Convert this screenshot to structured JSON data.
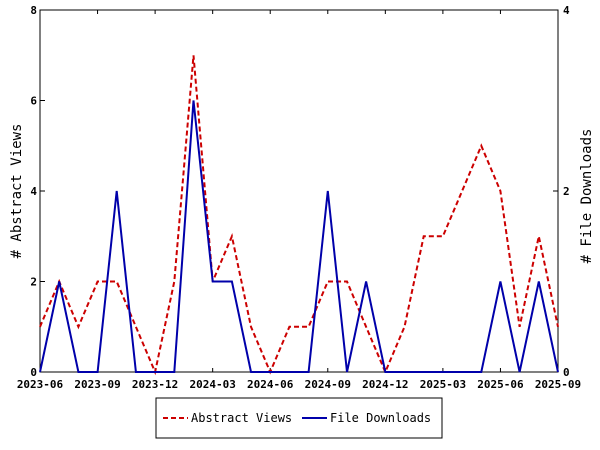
{
  "chart_data": {
    "type": "line",
    "x": [
      "2023-06",
      "2023-07",
      "2023-08",
      "2023-09",
      "2023-10",
      "2023-11",
      "2023-12",
      "2024-01",
      "2024-02",
      "2024-03",
      "2024-04",
      "2024-05",
      "2024-06",
      "2024-07",
      "2024-08",
      "2024-09",
      "2024-10",
      "2024-11",
      "2024-12",
      "2025-01",
      "2025-02",
      "2025-03",
      "2025-04",
      "2025-05",
      "2025-06",
      "2025-07",
      "2025-08",
      "2025-09"
    ],
    "x_tick_labels": [
      "2023-06",
      "2023-09",
      "2023-12",
      "2024-03",
      "2024-06",
      "2024-09",
      "2024-12",
      "2025-03",
      "2025-06",
      "2025-09"
    ],
    "ylabel": "# Abstract Views",
    "y2label": "# File Downloads",
    "ylim": [
      0,
      8
    ],
    "y2lim": [
      0,
      4
    ],
    "y_ticks": [
      0,
      2,
      4,
      6,
      8
    ],
    "y2_ticks": [
      0,
      2,
      4
    ],
    "series": [
      {
        "name": "Abstract Views",
        "axis": "left",
        "color": "#cc0000",
        "style": "dashed",
        "values": [
          1,
          2,
          1,
          2,
          2,
          1,
          0,
          2,
          7,
          2,
          3,
          1,
          0,
          1,
          1,
          2,
          2,
          1,
          0,
          1,
          3,
          3,
          4,
          5,
          4,
          1,
          3,
          1
        ]
      },
      {
        "name": "File Downloads",
        "axis": "right",
        "color": "#0000aa",
        "style": "solid",
        "values": [
          0,
          1,
          0,
          0,
          2,
          0,
          0,
          0,
          3,
          1,
          1,
          0,
          0,
          0,
          0,
          2,
          0,
          1,
          0,
          0,
          0,
          0,
          0,
          0,
          1,
          0,
          1,
          0
        ]
      }
    ],
    "legend": [
      "Abstract Views",
      "File Downloads"
    ],
    "legend_position": "bottom-center",
    "grid": false
  }
}
